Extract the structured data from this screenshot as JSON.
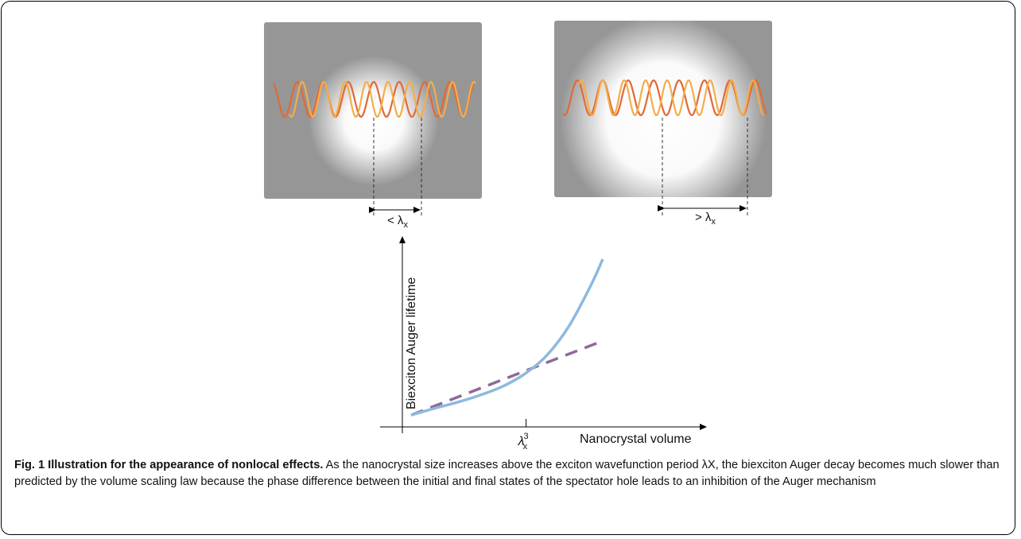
{
  "panel_left": {
    "measure_label": "< λ",
    "measure_sub": "x"
  },
  "panel_right": {
    "measure_label": "> λ",
    "measure_sub": "x"
  },
  "chart_data": {
    "type": "line",
    "title": "",
    "xlabel": "Nanocrystal volume",
    "ylabel": "Biexciton Auger lifetime",
    "x_tick_label": "λ",
    "x_tick_sub": "x",
    "x_tick_sup": "3",
    "xlim": [
      0,
      10
    ],
    "ylim": [
      0,
      10
    ],
    "series": [
      {
        "style": "solid",
        "color": "#8fb9de",
        "x": [
          0,
          1,
          2,
          3,
          4,
          5,
          6,
          7,
          8,
          8.5
        ],
        "y": [
          0.3,
          0.72,
          1.1,
          1.55,
          2.1,
          2.9,
          4.1,
          6.0,
          8.7,
          10.3
        ]
      },
      {
        "style": "dashed",
        "color": "#8e6a98",
        "x": [
          0,
          8.4
        ],
        "y": [
          0.3,
          5.0
        ]
      }
    ],
    "marker_x": 5.1
  },
  "caption": {
    "label": "Fig. 1 Illustration for the appearance of nonlocal effects.",
    "text": " As the nanocrystal size increases above the exciton wavefunction period λX, the biexciton Auger decay becomes much slower than predicted by the volume scaling law because the phase difference between the initial and final states of the spectator hole leads to an inhibition of the Auger mechanism"
  },
  "colors": {
    "panel_bg": "#969696",
    "wave_red": "#e06a3a",
    "wave_orange": "#f4ad4a",
    "curve_blue": "#8fb9de",
    "curve_dashed": "#8e6a98"
  }
}
